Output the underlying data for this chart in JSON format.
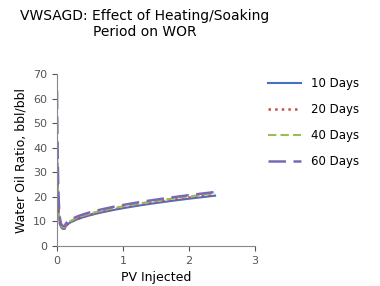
{
  "title": "VWSAGD: Effect of Heating/Soaking\nPeriod on WOR",
  "xlabel": "PV Injected",
  "ylabel": "Water Oil Ratio, bbl/bbl",
  "xlim": [
    0,
    3
  ],
  "ylim": [
    0,
    70
  ],
  "yticks": [
    0,
    10,
    20,
    30,
    40,
    50,
    60,
    70
  ],
  "xticks": [
    0,
    1,
    2,
    3
  ],
  "legend_entries": [
    "10 Days",
    "20 Days",
    "40 Days",
    "60 Days"
  ],
  "line_colors": [
    "#4472C4",
    "#C0504D",
    "#9BBB59",
    "#7B68B5"
  ],
  "background_color": "#FFFFFF",
  "title_fontsize": 10,
  "label_fontsize": 9,
  "tick_fontsize": 8,
  "legend_fontsize": 8.5
}
